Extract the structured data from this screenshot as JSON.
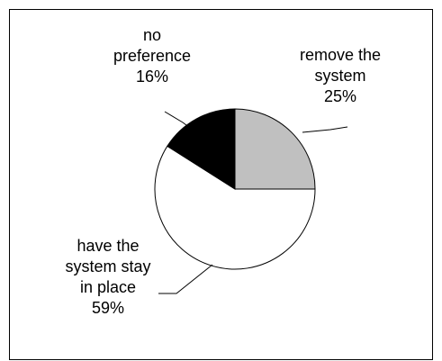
{
  "chart_data": {
    "type": "pie",
    "title": "",
    "slices": [
      {
        "label_lines": [
          "remove the",
          "system"
        ],
        "value_label": "25%",
        "value": 25,
        "color": "#c0c0c0"
      },
      {
        "label_lines": [
          "have the",
          "system stay",
          "in place"
        ],
        "value_label": "59%",
        "value": 59,
        "color": "#ffffff"
      },
      {
        "label_lines": [
          "no",
          "preference"
        ],
        "value_label": "16%",
        "value": 16,
        "color": "#000000"
      }
    ],
    "start_angle": "12 o'clock",
    "direction": "clockwise",
    "legend": "none"
  }
}
